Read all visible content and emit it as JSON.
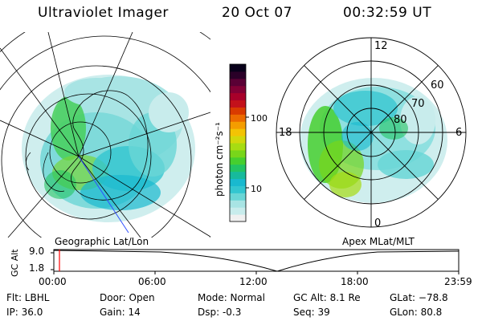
{
  "header": {
    "title": "Ultraviolet Imager",
    "date": "20 Oct 07",
    "time": "00:32:59 UT"
  },
  "left_panel": {
    "caption": "Geographic Lat/Lon"
  },
  "right_panel": {
    "caption": "Apex MLat/MLT",
    "mlt_labels": [
      "12",
      "18",
      "6",
      "0"
    ],
    "lat_labels": [
      "60",
      "70",
      "80"
    ]
  },
  "colorbar": {
    "label": "photon cm⁻²s⁻¹",
    "tick_labels": [
      "100",
      "10"
    ],
    "colors": [
      "#f0f0f0",
      "#c8ecec",
      "#a8e4e4",
      "#6ad6d6",
      "#33c6d0",
      "#19b9cf",
      "#17ba9c",
      "#23c463",
      "#46cf2f",
      "#78d61a",
      "#a7dc12",
      "#d2d80c",
      "#f3c304",
      "#f49d00",
      "#ec6b00",
      "#d93b00",
      "#c3111b",
      "#a8002a",
      "#820035",
      "#5a0035",
      "#2a0028",
      "#08001a"
    ]
  },
  "altitude_strip": {
    "axis_label": "GC Alt",
    "yticks": [
      "9.0",
      "1.8"
    ],
    "xticks": [
      "00:00",
      "06:00",
      "12:00",
      "18:00",
      "23:59"
    ],
    "current_time_marker_color": "#ff0000"
  },
  "status": {
    "filter": "Flt: LBHL",
    "ip": "IP: 36.0",
    "door": "Door: Open",
    "gain": "Gain: 14",
    "mode": "Mode: Normal",
    "dsp": "Dsp:   -0.3",
    "gc_alt": "GC Alt: 8.1 Re",
    "seq": "Seq: 39",
    "glat": "GLat: −78.8",
    "glon": "GLon:  80.8"
  }
}
